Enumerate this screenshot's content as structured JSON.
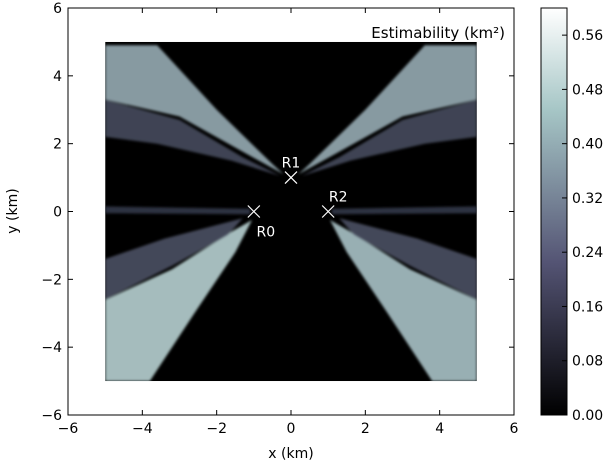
{
  "chart_data": {
    "type": "heatmap",
    "title": "",
    "plot_title": "Estimability (km²)",
    "xlabel": "x (km)",
    "ylabel": "y (km)",
    "xlim": [
      -6,
      6
    ],
    "ylim": [
      -6,
      6
    ],
    "x_ticks": [
      -6,
      -4,
      -2,
      0,
      2,
      4,
      6
    ],
    "y_ticks": [
      -6,
      -4,
      -2,
      0,
      2,
      4,
      6
    ],
    "x_tick_labels": [
      "−6",
      "−4",
      "−2",
      "0",
      "2",
      "4",
      "6"
    ],
    "y_tick_labels": [
      "−6",
      "−4",
      "−2",
      "0",
      "2",
      "4",
      "6"
    ],
    "data_extent": {
      "x": [
        -5,
        5
      ],
      "y": [
        -5,
        5
      ]
    },
    "grid": false,
    "colormap": "bone",
    "colorbar": {
      "range": [
        0,
        0.6
      ],
      "ticks": [
        0.0,
        0.08,
        0.16,
        0.24,
        0.32,
        0.4,
        0.48,
        0.56
      ],
      "tick_labels": [
        "0.00",
        "0.08",
        "0.16",
        "0.24",
        "0.32",
        "0.40",
        "0.48",
        "0.56"
      ]
    },
    "markers": [
      {
        "label": "R0",
        "x": -1,
        "y": 0,
        "label_position": "below-right"
      },
      {
        "label": "R1",
        "x": 0,
        "y": 1,
        "label_position": "above"
      },
      {
        "label": "R2",
        "x": 1,
        "y": 0,
        "label_position": "above-right"
      }
    ],
    "pattern": "High estimability (up to ~0.58 km²) along four diagonal branches extending from the receiver cluster toward the corners; near zero elsewhere, particularly along the central vertical and horizontal bands."
  }
}
